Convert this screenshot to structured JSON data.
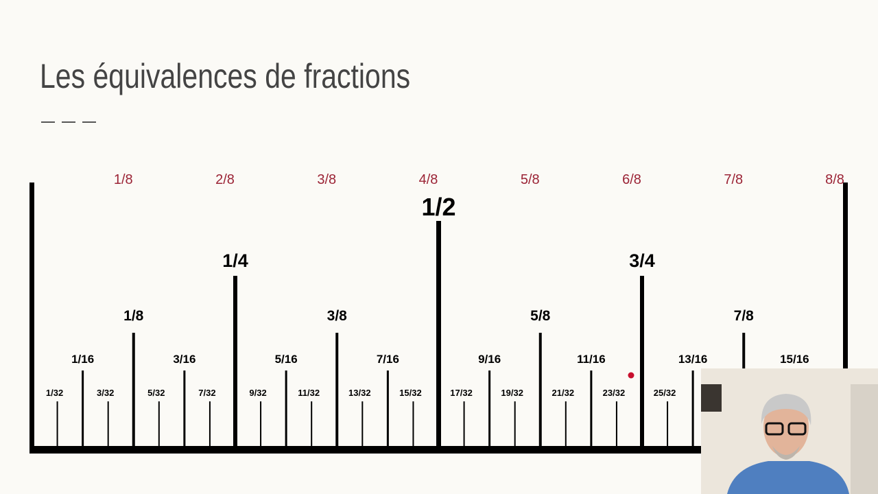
{
  "title": "Les équivalences de fractions",
  "eighth_labels": [
    "1/8",
    "2/8",
    "3/8",
    "4/8",
    "5/8",
    "6/8",
    "7/8",
    "8/8"
  ],
  "ruler": {
    "half": "1/2",
    "quarters": [
      "1/4",
      "3/4"
    ],
    "eighths": [
      "1/8",
      "3/8",
      "5/8",
      "7/8"
    ],
    "sixteenths": [
      "1/16",
      "3/16",
      "5/16",
      "7/16",
      "9/16",
      "11/16",
      "13/16",
      "15/16"
    ],
    "thirty_seconds": [
      "1/32",
      "3/32",
      "5/32",
      "7/32",
      "9/32",
      "11/32",
      "13/32",
      "15/32",
      "17/32",
      "19/32",
      "21/32",
      "23/32",
      "25/32"
    ]
  }
}
